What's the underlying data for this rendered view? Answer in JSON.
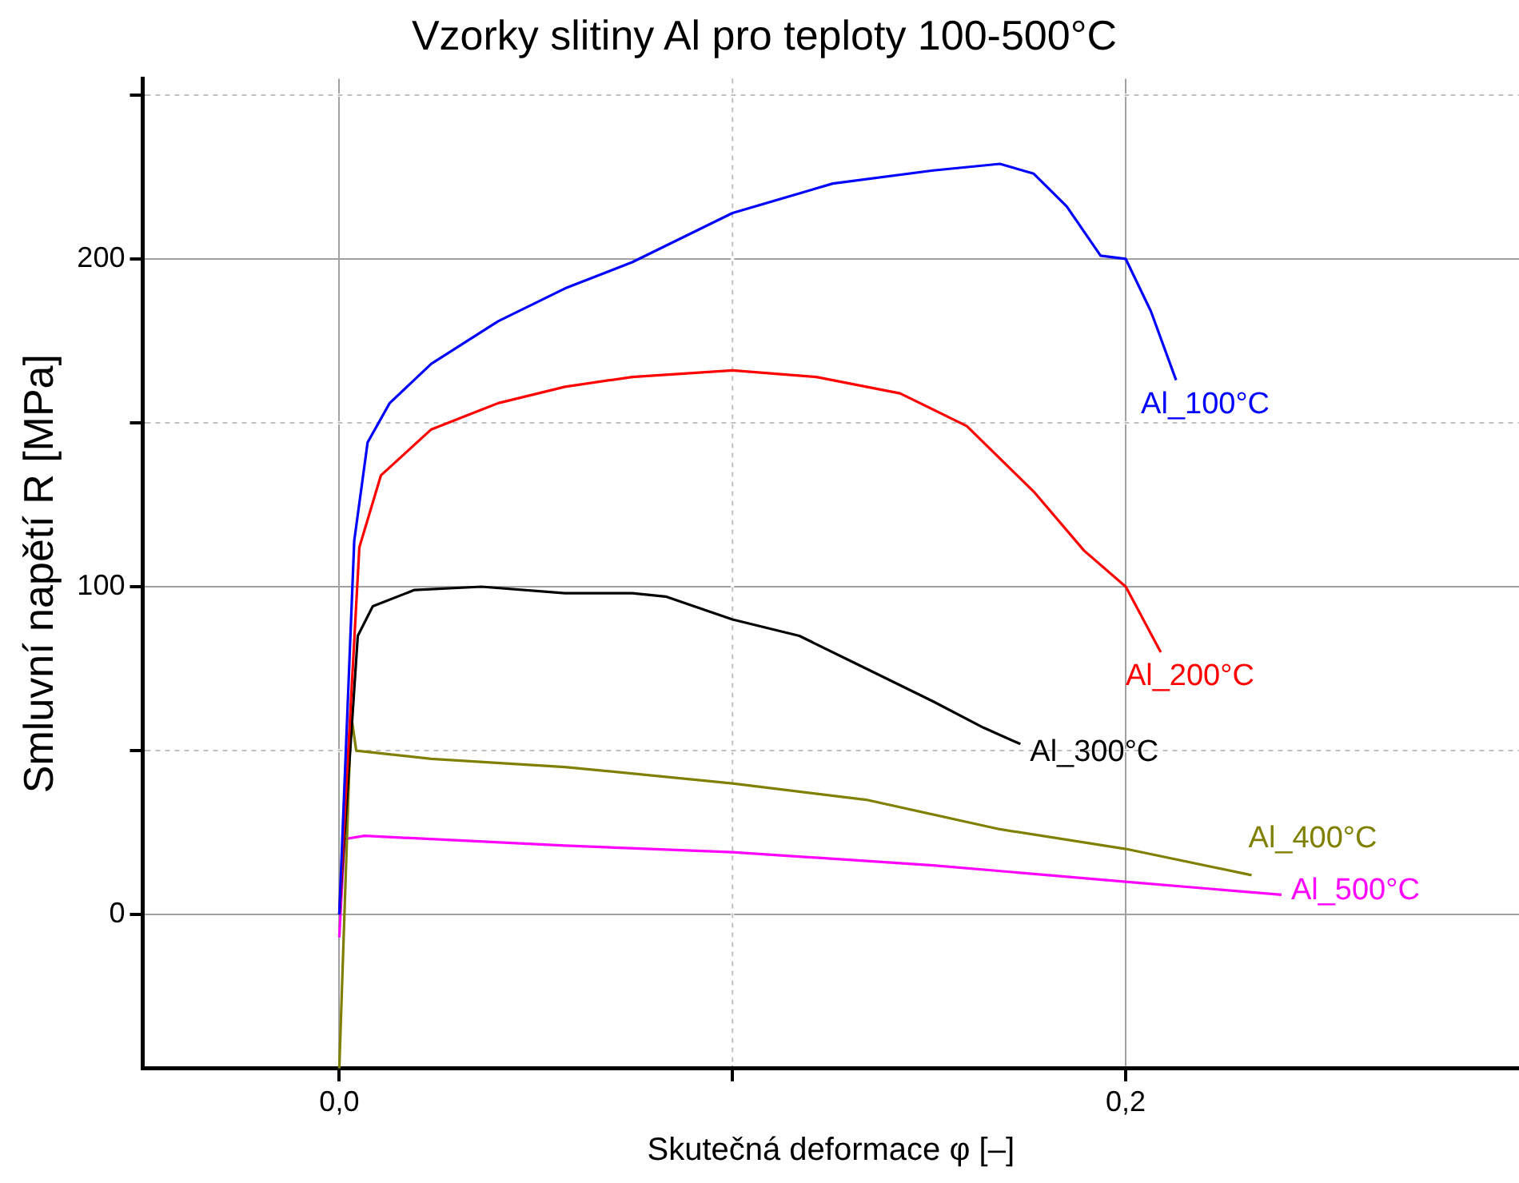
{
  "chart_data": {
    "type": "line",
    "title": "Vzorky slitiny Al pro teploty 100-500°C",
    "xlabel": "Skutečná deformace φ [–]",
    "ylabel": "Smluvní napětí R [MPa]",
    "xlim": [
      -0.05,
      0.3
    ],
    "xticks": [
      {
        "value": 0,
        "label": "0,0"
      },
      {
        "value": 0.1,
        "label": null
      },
      {
        "value": 0.2,
        "label": "0,2"
      }
    ],
    "ylim": [
      -47,
      255
    ],
    "yticks": [
      {
        "value": 0,
        "label": "0"
      },
      {
        "value": 50,
        "label": null
      },
      {
        "value": 100,
        "label": "100"
      },
      {
        "value": 150,
        "label": null
      },
      {
        "value": 200,
        "label": "200"
      },
      {
        "value": 250,
        "label": null
      }
    ],
    "grid": true,
    "legend": false,
    "marker": "none",
    "line_style": "solid",
    "series": [
      {
        "name": "Al_100°C",
        "color": "#0000ff",
        "x": [
          0,
          0.0038,
          0.0072,
          0.0128,
          0.0234,
          0.0404,
          0.0574,
          0.0745,
          0.1,
          0.1255,
          0.151,
          0.168,
          0.1766,
          0.185,
          0.1936,
          0.2,
          0.2064,
          0.2128
        ],
        "values": [
          0,
          114,
          144,
          156,
          168,
          181,
          191,
          199,
          214,
          223,
          227,
          229,
          226,
          216,
          201,
          200,
          184,
          163
        ]
      },
      {
        "name": "Al_200°C",
        "color": "#ff0000",
        "x": [
          0,
          0.0051,
          0.0106,
          0.0234,
          0.0404,
          0.0574,
          0.0745,
          0.1,
          0.1213,
          0.1426,
          0.1596,
          0.1766,
          0.1894,
          0.2,
          0.2089
        ],
        "values": [
          0,
          112,
          134,
          148,
          156,
          161,
          164,
          166,
          164,
          159,
          149,
          129,
          111,
          100,
          80
        ]
      },
      {
        "name": "Al_300°C",
        "color": "#000000",
        "x": [
          0,
          0.0047,
          0.0085,
          0.0191,
          0.0362,
          0.0574,
          0.0745,
          0.083,
          0.1,
          0.117,
          0.134,
          0.151,
          0.1638,
          0.1732
        ],
        "values": [
          0,
          85,
          94,
          99,
          100,
          98,
          98,
          97,
          90,
          85,
          75,
          65,
          57,
          52
        ]
      },
      {
        "name": "Al_400°C",
        "color": "#808000",
        "x": [
          0,
          0.003,
          0.0043,
          0.0234,
          0.0574,
          0.1,
          0.134,
          0.168,
          0.2,
          0.232
        ],
        "values": [
          -47,
          61,
          50,
          47.5,
          45,
          40,
          35,
          26,
          20,
          12
        ]
      },
      {
        "name": "Al_500°C",
        "color": "#ff00ff",
        "x": [
          0,
          0.0013,
          0.0064,
          0.0574,
          0.1,
          0.151,
          0.2,
          0.2396
        ],
        "values": [
          -7,
          23,
          24,
          21,
          19,
          15,
          10,
          6
        ]
      }
    ]
  }
}
